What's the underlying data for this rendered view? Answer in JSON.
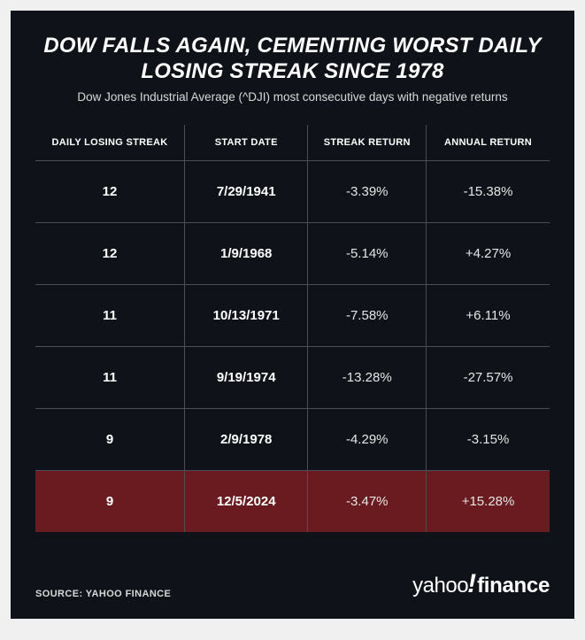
{
  "layout": {
    "background_color": "#0f1319",
    "highlight_row_color": "#6a1b1f",
    "border_color": "#4a4f57",
    "text_color": "#ffffff",
    "muted_text_color": "#d8d8d8"
  },
  "title": "DOW FALLS AGAIN, CEMENTING WORST DAILY LOSING STREAK SINCE 1978",
  "subtitle": "Dow Jones Industrial Average (^DJI) most consecutive days with negative returns",
  "table": {
    "columns": [
      "DAILY LOSING STREAK",
      "START DATE",
      "STREAK RETURN",
      "ANNUAL RETURN"
    ],
    "bold_columns": [
      0,
      1
    ],
    "rows": [
      {
        "cells": [
          "12",
          "7/29/1941",
          "-3.39%",
          "-15.38%"
        ],
        "highlight": false
      },
      {
        "cells": [
          "12",
          "1/9/1968",
          "-5.14%",
          "+4.27%"
        ],
        "highlight": false
      },
      {
        "cells": [
          "11",
          "10/13/1971",
          "-7.58%",
          "+6.11%"
        ],
        "highlight": false
      },
      {
        "cells": [
          "11",
          "9/19/1974",
          "-13.28%",
          "-27.57%"
        ],
        "highlight": false
      },
      {
        "cells": [
          "9",
          "2/9/1978",
          "-4.29%",
          "-3.15%"
        ],
        "highlight": false
      },
      {
        "cells": [
          "9",
          "12/5/2024",
          "-3.47%",
          "+15.28%"
        ],
        "highlight": true
      }
    ]
  },
  "source_label": "SOURCE: YAHOO FINANCE",
  "logo": {
    "part1": "yahoo",
    "excl": "!",
    "part2": "finance"
  }
}
